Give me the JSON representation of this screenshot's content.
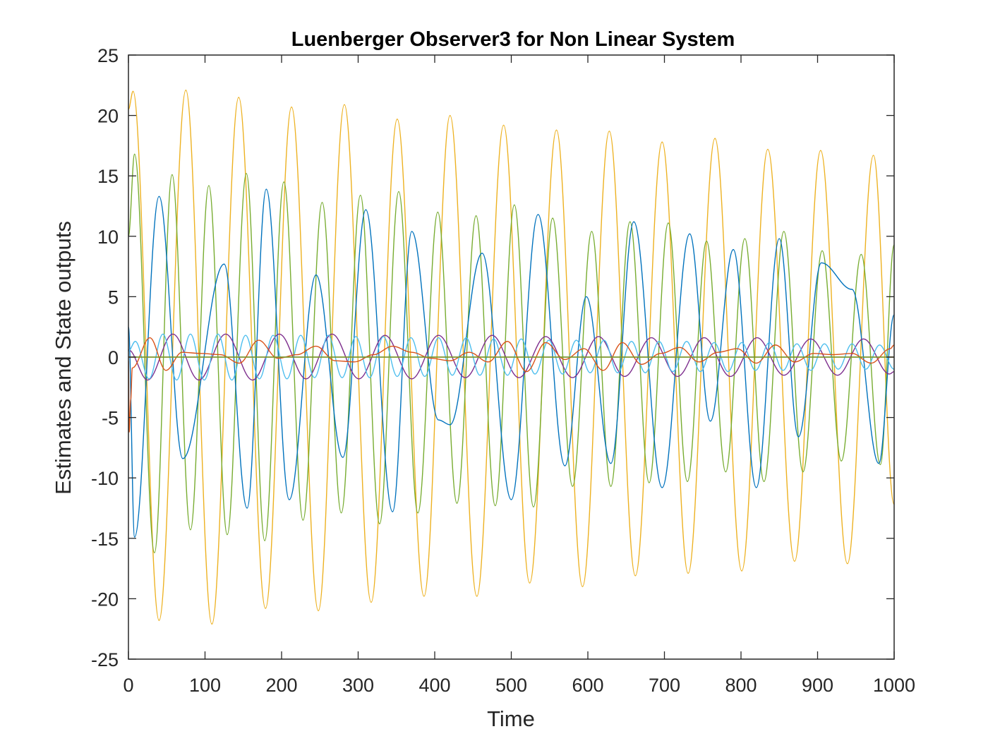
{
  "chart_data": {
    "type": "line",
    "title": "Luenberger Observer3 for Non Linear System",
    "xlabel": "Time",
    "ylabel": "Estimates and State outputs",
    "xlim": [
      0,
      1000
    ],
    "ylim": [
      -25,
      25
    ],
    "xticks": [
      0,
      100,
      200,
      300,
      400,
      500,
      600,
      700,
      800,
      900,
      1000
    ],
    "yticks": [
      -25,
      -20,
      -15,
      -10,
      -5,
      0,
      5,
      10,
      15,
      20,
      25
    ],
    "xtick_labels": [
      "0",
      "100",
      "200",
      "300",
      "400",
      "500",
      "600",
      "700",
      "800",
      "900",
      "1000"
    ],
    "ytick_labels": [
      "-25",
      "-20",
      "-15",
      "-10",
      "-5",
      "0",
      "5",
      "10",
      "15",
      "20",
      "25"
    ],
    "grid": false,
    "legend": "none",
    "series": [
      {
        "color": "#EDB120",
        "x": [
          0,
          6,
          40,
          75,
          109,
          144,
          179,
          213,
          248,
          282,
          317,
          351,
          386,
          420,
          455,
          490,
          524,
          559,
          593,
          628,
          662,
          697,
          731,
          766,
          801,
          835,
          870,
          904,
          939,
          973,
          1000
        ],
        "y": [
          20.5,
          22,
          -21.8,
          22.1,
          -22.1,
          21.5,
          -20.8,
          20.7,
          -21,
          20.9,
          -20.3,
          19.7,
          -19.8,
          20,
          -19.8,
          19.2,
          -18.7,
          18.8,
          -19,
          18.7,
          -18.1,
          17.8,
          -17.9,
          18.1,
          -17.7,
          17.2,
          -16.9,
          17.1,
          -17.1,
          16.7,
          -12.2
        ]
      },
      {
        "color": "#77AC30",
        "x": [
          0,
          8,
          34,
          57,
          81,
          105,
          129,
          154,
          178,
          203,
          228,
          253,
          278,
          303,
          328,
          353,
          378,
          404,
          429,
          454,
          479,
          504,
          529,
          554,
          580,
          605,
          630,
          655,
          680,
          705,
          730,
          755,
          780,
          805,
          830,
          856,
          881,
          906,
          931,
          957,
          982,
          1000
        ],
        "y": [
          10,
          16.8,
          -16.2,
          15.1,
          -14.3,
          14.2,
          -14.7,
          15.2,
          -15.2,
          14.5,
          -13.5,
          12.8,
          -12.9,
          13.4,
          -13.8,
          13.7,
          -12.9,
          12,
          -12.1,
          11.7,
          -12.3,
          12.6,
          -12.4,
          11.5,
          -10.7,
          10.4,
          -10.7,
          11.2,
          -10.4,
          11.1,
          -10.3,
          9.6,
          -9.5,
          9.8,
          -10.3,
          10.4,
          -9.5,
          8.8,
          -8.6,
          8.5,
          -8.9,
          9.3
        ]
      },
      {
        "color": "#0072BD",
        "x": [
          0,
          8,
          40,
          71,
          125,
          155,
          180,
          210,
          245,
          280,
          310,
          345,
          370,
          405,
          420,
          462,
          500,
          535,
          570,
          598,
          630,
          660,
          697,
          733,
          760,
          790,
          820,
          850,
          875,
          905,
          945,
          980,
          1000
        ],
        "y": [
          2.5,
          -14.9,
          13.3,
          -8.4,
          7.7,
          -12.5,
          13.9,
          -11.8,
          6.8,
          -8.3,
          12.2,
          -12.8,
          10.4,
          -5.2,
          -5.6,
          8.6,
          -11.8,
          11.8,
          -9,
          5,
          -8.8,
          11.2,
          -10.8,
          10.2,
          -5.3,
          8.9,
          -10.8,
          9.8,
          -6.6,
          7.8,
          5.6,
          -8.8,
          3.5
        ]
      },
      {
        "color": "#7E2F8E",
        "x": [
          0,
          25,
          58,
          92,
          127,
          162,
          197,
          232,
          266,
          301,
          335,
          370,
          405,
          440,
          475,
          510,
          545,
          580,
          614,
          648,
          683,
          717,
          752,
          786,
          821,
          856,
          891,
          926,
          960,
          994,
          1000
        ],
        "y": [
          0.6,
          -1.9,
          1.9,
          -1.9,
          1.9,
          -1.9,
          1.9,
          -1.8,
          1.9,
          -1.8,
          1.8,
          -1.8,
          1.8,
          -1.7,
          1.8,
          -1.7,
          1.7,
          -1.7,
          1.7,
          -1.6,
          1.6,
          -1.6,
          1.6,
          -1.6,
          1.6,
          -1.5,
          1.5,
          -1.5,
          1.5,
          -1.4,
          -1.2
        ]
      },
      {
        "color": "#4DBEEE",
        "x": [
          0,
          9,
          27,
          45,
          63,
          81,
          99,
          117,
          135,
          153,
          171,
          189,
          207,
          225,
          243,
          261,
          279,
          297,
          315,
          333,
          351,
          369,
          387,
          405,
          423,
          441,
          459,
          477,
          495,
          513,
          531,
          549,
          567,
          585,
          603,
          621,
          639,
          657,
          675,
          693,
          711,
          729,
          747,
          765,
          783,
          801,
          819,
          837,
          855,
          873,
          891,
          909,
          927,
          945,
          963,
          981,
          1000
        ],
        "y": [
          0.5,
          1.3,
          -1.8,
          1.9,
          -1.9,
          1.9,
          -1.9,
          1.9,
          -1.9,
          1.8,
          -1.8,
          1.8,
          -1.8,
          1.8,
          -1.7,
          1.8,
          -1.7,
          1.7,
          -1.7,
          1.7,
          -1.6,
          1.6,
          -1.6,
          1.6,
          -1.5,
          1.6,
          -1.5,
          1.5,
          -1.5,
          1.5,
          -1.4,
          1.4,
          -1.4,
          1.4,
          -1.3,
          1.4,
          -1.3,
          1.3,
          -1.3,
          1.3,
          -1.2,
          1.3,
          -1.2,
          1.2,
          -1.2,
          1.2,
          -1.1,
          1.2,
          -1.1,
          1.1,
          -1.1,
          1.1,
          -1.0,
          1.1,
          -1.0,
          1.0,
          -1.0
        ]
      },
      {
        "color": "#D95319",
        "x": [
          0,
          1,
          3,
          5,
          28,
          49,
          70,
          95,
          120,
          145,
          170,
          195,
          220,
          245,
          270,
          295,
          320,
          345,
          370,
          395,
          420,
          445,
          470,
          495,
          520,
          545,
          570,
          595,
          620,
          645,
          670,
          695,
          720,
          745,
          770,
          795,
          820,
          845,
          870,
          895,
          920,
          945,
          970,
          995,
          1000
        ],
        "y": [
          -0.3,
          -6.2,
          -3.5,
          -0.9,
          1.6,
          -1.1,
          0.4,
          0.3,
          0.2,
          -0.5,
          1.4,
          -0.1,
          0.2,
          0.9,
          -0.3,
          -0.4,
          0.2,
          0.9,
          0.4,
          -0.1,
          -0.3,
          0.4,
          -0.4,
          1.3,
          -1.2,
          1.2,
          -0.2,
          0.7,
          -1.1,
          1.2,
          -0.6,
          0.3,
          0.8,
          -0.4,
          0.4,
          0.7,
          -0.5,
          1.0,
          -0.4,
          0.3,
          0.2,
          0.3,
          -0.5,
          0.7,
          1.0
        ]
      },
      {
        "color": "#A2142F",
        "x": [
          0,
          1000
        ],
        "y": [
          0,
          0
        ]
      },
      {
        "color": "#77AC30",
        "x": [
          0,
          1000
        ],
        "y": [
          0,
          0
        ]
      }
    ]
  }
}
